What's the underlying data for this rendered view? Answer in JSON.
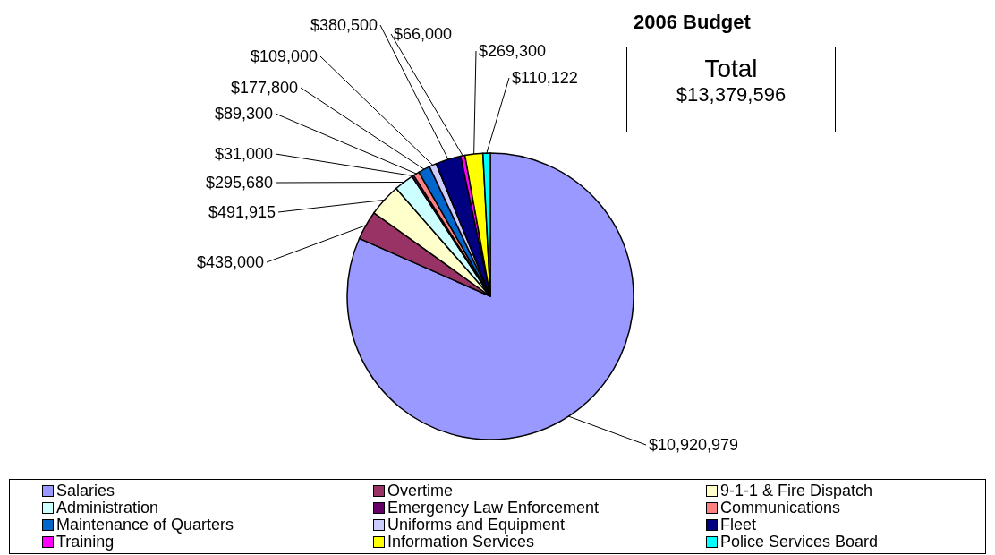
{
  "chart_data": {
    "type": "pie",
    "title": "2006 Budget",
    "categories": [
      "Salaries",
      "Overtime",
      "9-1-1 & Fire Dispatch",
      "Administration",
      "Emergency Law Enforcement",
      "Communications",
      "Maintenance of Quarters",
      "Uniforms and Equipment",
      "Fleet",
      "Training",
      "Information Services",
      "Police Services Board"
    ],
    "values": [
      10920979,
      438000,
      491915,
      295680,
      31000,
      89300,
      177800,
      109000,
      380500,
      66000,
      269300,
      110122
    ],
    "colors": [
      "#9999ff",
      "#993366",
      "#ffffcc",
      "#ccffff",
      "#660066",
      "#ff8080",
      "#0066cc",
      "#ccccff",
      "#000080",
      "#ff00ff",
      "#ffff00",
      "#00ffff"
    ],
    "value_labels": [
      "$10,920,979",
      "$438,000",
      "$491,915",
      "$295,680",
      "$31,000",
      "$89,300",
      "$177,800",
      "$109,000",
      "$380,500",
      "$66,000",
      "$269,300",
      "$110,122"
    ],
    "annotations": [
      "Total",
      "$13,379,596"
    ],
    "legend": "bottom"
  }
}
